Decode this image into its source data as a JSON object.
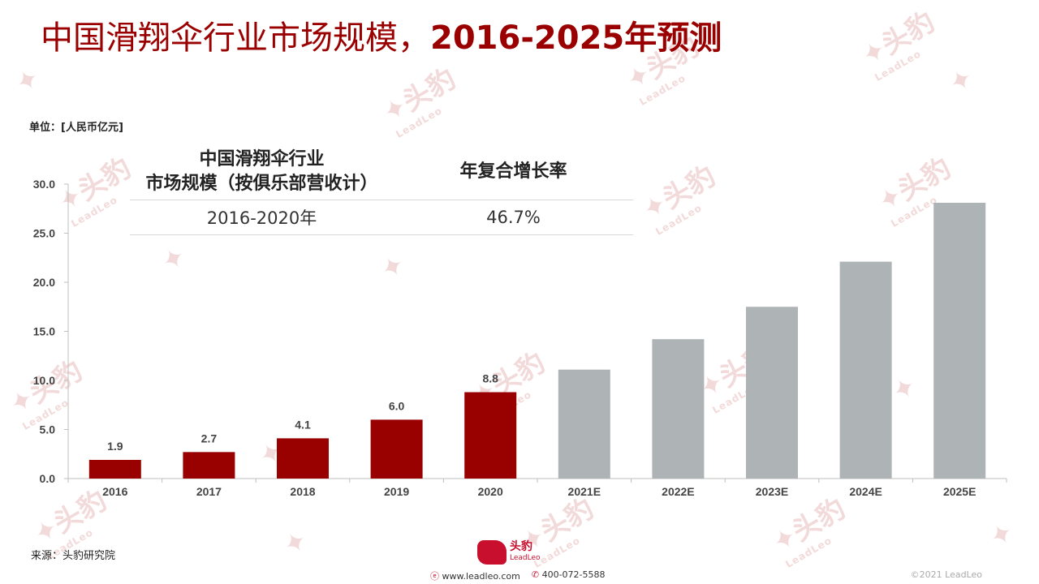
{
  "title": {
    "cn": "中国滑翔伞行业市场规模，",
    "years": "2016-2025年预测"
  },
  "unit_label": "单位：[人民币亿元]",
  "cagr_table": {
    "header_left": "中国滑翔伞行业\n市场规模（按俱乐部营收计）",
    "header_right": "年复合增长率",
    "rows": [
      {
        "period": "2016-2020年",
        "rate": "46.7%"
      }
    ]
  },
  "chart_data": {
    "type": "bar",
    "categories": [
      "2016",
      "2017",
      "2018",
      "2019",
      "2020",
      "2021E",
      "2022E",
      "2023E",
      "2024E",
      "2025E"
    ],
    "values": [
      1.9,
      2.7,
      4.1,
      6.0,
      8.8,
      11.1,
      14.2,
      17.5,
      22.1,
      28.1
    ],
    "data_labels": [
      "1.9",
      "2.7",
      "4.1",
      "6.0",
      "8.8",
      "",
      "",
      "",
      "",
      ""
    ],
    "colors": [
      "#990000",
      "#990000",
      "#990000",
      "#990000",
      "#990000",
      "#aeb3b6",
      "#aeb3b6",
      "#aeb3b6",
      "#aeb3b6",
      "#aeb3b6"
    ],
    "yticks": [
      "0.0",
      "5.0",
      "10.0",
      "15.0",
      "20.0",
      "25.0",
      "30.0"
    ],
    "ylim": [
      0,
      30
    ],
    "grid": false
  },
  "source": "来源：头豹研究院",
  "footer": {
    "logo_cn": "头豹",
    "logo_en": "LeadLeo",
    "website": "www.leadleo.com",
    "phone": "400-072-5588",
    "copyright": "©2021 LeadLeo"
  },
  "watermark": {
    "cn": "头豹",
    "en": "LeadLeo"
  },
  "colors": {
    "accent": "#9b0000",
    "actual": "#990000",
    "forecast": "#aeb3b6"
  }
}
